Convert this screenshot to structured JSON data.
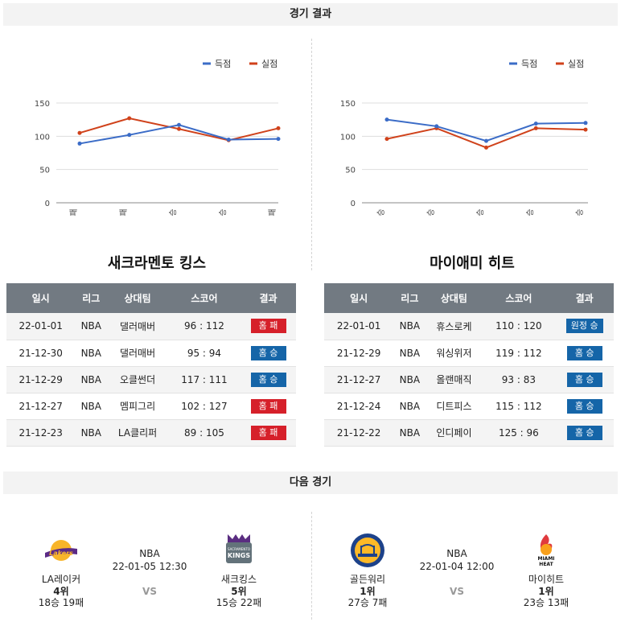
{
  "sections": {
    "results_title": "경기 결과",
    "next_title": "다음 경기"
  },
  "colors": {
    "scored": "#3b6cc7",
    "conceded": "#d0421b",
    "header_bg": "#727a82",
    "win": "#1565a8",
    "lose": "#d6202a"
  },
  "legend": {
    "scored": "득점",
    "conceded": "실점"
  },
  "table_headers": [
    "일시",
    "리그",
    "상대팀",
    "스코어",
    "결과"
  ],
  "chart_data": [
    {
      "type": "line",
      "categories": [
        "패",
        "패",
        "승",
        "승",
        "패"
      ],
      "series": [
        {
          "name": "득점",
          "values": [
            89,
            102,
            117,
            95,
            96
          ]
        },
        {
          "name": "실점",
          "values": [
            105,
            127,
            111,
            94,
            112
          ]
        }
      ],
      "yticks": [
        0,
        50,
        100,
        150
      ],
      "ylim": [
        0,
        150
      ],
      "grid": true,
      "legend_position": "top-right"
    },
    {
      "type": "line",
      "categories": [
        "승",
        "승",
        "승",
        "승",
        "승"
      ],
      "series": [
        {
          "name": "득점",
          "values": [
            125,
            115,
            93,
            119,
            120
          ]
        },
        {
          "name": "실점",
          "values": [
            96,
            112,
            83,
            112,
            110
          ]
        }
      ],
      "yticks": [
        0,
        50,
        100,
        150
      ],
      "ylim": [
        0,
        150
      ],
      "grid": true,
      "legend_position": "top-right"
    }
  ],
  "teams": [
    {
      "name": "새크라멘토 킹스",
      "rows": [
        {
          "date": "22-01-01",
          "league": "NBA",
          "opponent": "댈러매버",
          "score": "96 : 112",
          "result": "홈 패",
          "win": false
        },
        {
          "date": "21-12-30",
          "league": "NBA",
          "opponent": "댈러매버",
          "score": "95 : 94",
          "result": "홈 승",
          "win": true
        },
        {
          "date": "21-12-29",
          "league": "NBA",
          "opponent": "오클썬더",
          "score": "117 : 111",
          "result": "홈 승",
          "win": true
        },
        {
          "date": "21-12-27",
          "league": "NBA",
          "opponent": "멤피그리",
          "score": "102 : 127",
          "result": "홈 패",
          "win": false
        },
        {
          "date": "21-12-23",
          "league": "NBA",
          "opponent": "LA클리퍼",
          "score": "89 : 105",
          "result": "홈 패",
          "win": false
        }
      ]
    },
    {
      "name": "마이애미 히트",
      "rows": [
        {
          "date": "22-01-01",
          "league": "NBA",
          "opponent": "휴스로케",
          "score": "110 : 120",
          "result": "원정 승",
          "win": true
        },
        {
          "date": "21-12-29",
          "league": "NBA",
          "opponent": "워싱위저",
          "score": "119 : 112",
          "result": "홈 승",
          "win": true
        },
        {
          "date": "21-12-27",
          "league": "NBA",
          "opponent": "올랜매직",
          "score": "93 : 83",
          "result": "홈 승",
          "win": true
        },
        {
          "date": "21-12-24",
          "league": "NBA",
          "opponent": "디트피스",
          "score": "115 : 112",
          "result": "홈 승",
          "win": true
        },
        {
          "date": "21-12-22",
          "league": "NBA",
          "opponent": "인디페이",
          "score": "125 : 96",
          "result": "홈 승",
          "win": true
        }
      ]
    }
  ],
  "next_games": [
    {
      "league": "NBA",
      "datetime": "22-01-05 12:30",
      "vs": "VS",
      "away": {
        "name": "LA레이커",
        "rank": "4위",
        "record": "18승 19패",
        "logo": "lakers-logo"
      },
      "home": {
        "name": "새크킹스",
        "rank": "5위",
        "record": "15승 22패",
        "logo": "kings-logo"
      }
    },
    {
      "league": "NBA",
      "datetime": "22-01-04 12:00",
      "vs": "VS",
      "away": {
        "name": "골든워리",
        "rank": "1위",
        "record": "27승 7패",
        "logo": "warriors-logo"
      },
      "home": {
        "name": "마이히트",
        "rank": "1위",
        "record": "23승 13패",
        "logo": "heat-logo"
      }
    }
  ]
}
